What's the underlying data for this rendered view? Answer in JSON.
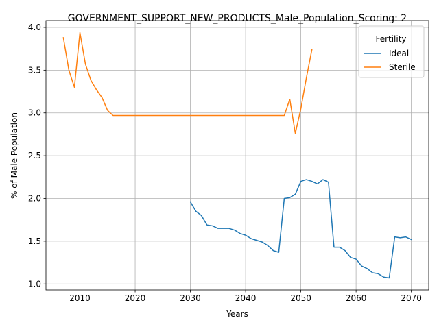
{
  "chart_data": {
    "type": "line",
    "title": "GOVERNMENT_SUPPORT_NEW_PRODUCTS_Male_Population_Scoring: 2",
    "xlabel": "Years",
    "ylabel": "% of Male Population",
    "xlim": [
      2003.85,
      2073.15
    ],
    "ylim": [
      0.93,
      4.08
    ],
    "xticks": [
      2010,
      2020,
      2030,
      2040,
      2050,
      2060,
      2070
    ],
    "yticks": [
      1.0,
      1.5,
      2.0,
      2.5,
      3.0,
      3.5,
      4.0
    ],
    "xtick_labels": [
      "2010",
      "2020",
      "2030",
      "2040",
      "2050",
      "2060",
      "2070"
    ],
    "ytick_labels": [
      "1.0",
      "1.5",
      "2.0",
      "2.5",
      "3.0",
      "3.5",
      "4.0"
    ],
    "grid": true,
    "legend": {
      "title": "Fertility",
      "placement": "top-right"
    },
    "series": [
      {
        "name": "Ideal",
        "color": "#1f77b4",
        "x": [
          2030,
          2031,
          2032,
          2033,
          2034,
          2035,
          2036,
          2037,
          2038,
          2039,
          2040,
          2041,
          2042,
          2043,
          2044,
          2045,
          2046,
          2047,
          2048,
          2049,
          2050,
          2051,
          2052,
          2053,
          2054,
          2055,
          2056,
          2057,
          2058,
          2059,
          2060,
          2061,
          2062,
          2063,
          2064,
          2065,
          2066,
          2067,
          2068,
          2069,
          2070
        ],
        "y": [
          1.96,
          1.85,
          1.8,
          1.69,
          1.68,
          1.65,
          1.65,
          1.65,
          1.63,
          1.59,
          1.57,
          1.53,
          1.51,
          1.49,
          1.45,
          1.39,
          1.37,
          2.0,
          2.01,
          2.05,
          2.2,
          2.22,
          2.2,
          2.17,
          2.22,
          2.19,
          1.43,
          1.43,
          1.39,
          1.31,
          1.29,
          1.21,
          1.18,
          1.13,
          1.12,
          1.08,
          1.07,
          1.55,
          1.54,
          1.55,
          1.52
        ]
      },
      {
        "name": "Sterile",
        "color": "#ff7f0e",
        "x": [
          2007,
          2008,
          2009,
          2010,
          2011,
          2012,
          2013,
          2014,
          2015,
          2016,
          2017,
          2018,
          2019,
          2020,
          2021,
          2022,
          2023,
          2024,
          2025,
          2026,
          2027,
          2028,
          2029,
          2030,
          2031,
          2032,
          2033,
          2034,
          2035,
          2036,
          2037,
          2038,
          2039,
          2040,
          2041,
          2042,
          2043,
          2044,
          2045,
          2046,
          2047,
          2048,
          2049,
          2050,
          2051,
          2052
        ],
        "y": [
          3.88,
          3.5,
          3.3,
          3.94,
          3.57,
          3.38,
          3.27,
          3.18,
          3.03,
          2.97,
          2.97,
          2.97,
          2.97,
          2.97,
          2.97,
          2.97,
          2.97,
          2.97,
          2.97,
          2.97,
          2.97,
          2.97,
          2.97,
          2.97,
          2.97,
          2.97,
          2.97,
          2.97,
          2.97,
          2.97,
          2.97,
          2.97,
          2.97,
          2.97,
          2.97,
          2.97,
          2.97,
          2.97,
          2.97,
          2.97,
          2.97,
          3.16,
          2.76,
          3.05,
          3.41,
          3.74
        ]
      }
    ]
  }
}
